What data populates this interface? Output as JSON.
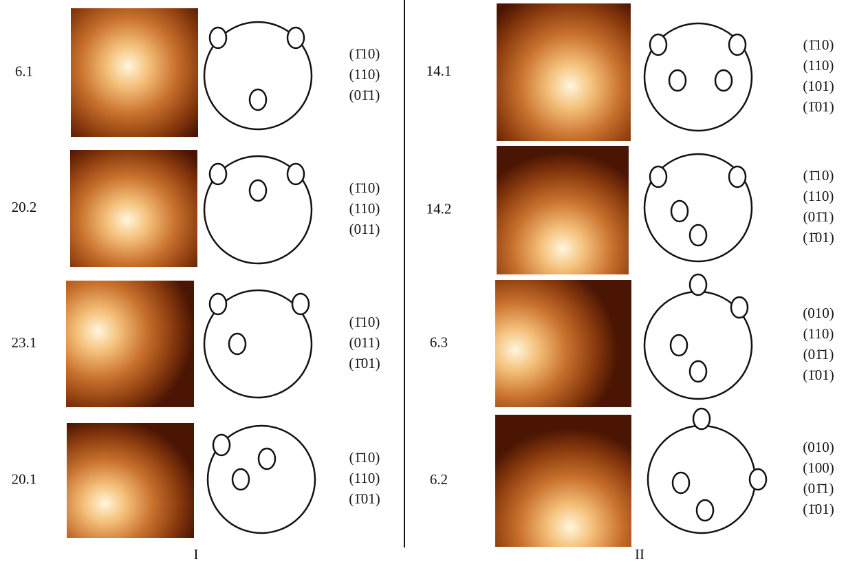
{
  "panels": [
    {
      "label": "I",
      "rows": [
        {
          "label": "6.1",
          "planes": [
            "(1̄10)",
            "(110)",
            "(01̄1)"
          ]
        },
        {
          "label": "20.2",
          "planes": [
            "(1̄10)",
            "(110)",
            "(011)"
          ]
        },
        {
          "label": "23.1",
          "planes": [
            "(1̄10)",
            "(011)",
            "(1̄01)"
          ]
        },
        {
          "label": "20.1",
          "planes": [
            "(1̄10)",
            "(110)",
            "(1̄01)"
          ]
        }
      ]
    },
    {
      "label": "II",
      "rows": [
        {
          "label": "14.1",
          "planes": [
            "(1̄10)",
            "(110)",
            "(101)",
            "(1̄01)"
          ]
        },
        {
          "label": "14.2",
          "planes": [
            "(1̄10)",
            "(110)",
            "(01̄1)",
            "(1̄01)"
          ]
        },
        {
          "label": "6.3",
          "planes": [
            "(010)",
            "(110)",
            "(01̄1)",
            "(1̄01)"
          ]
        },
        {
          "label": "6.2",
          "planes": [
            "(010)",
            "(100)",
            "(01̄1)",
            "(1̄01)"
          ]
        }
      ]
    }
  ]
}
